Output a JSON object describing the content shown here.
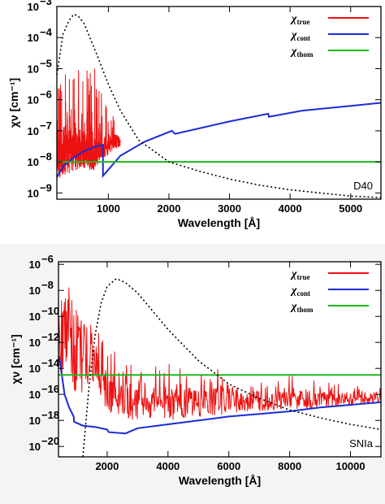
{
  "chart_data": [
    {
      "type": "line",
      "panel_label": "D40",
      "xlabel": "Wavelength [Å]",
      "ylabel": "χν [cm⁻¹]",
      "xlim": [
        150,
        5500
      ],
      "ylim_log10": [
        -9.2,
        -3
      ],
      "xticks": [
        1000,
        2000,
        3000,
        4000,
        5000
      ],
      "yticks_exp": [
        -9,
        -8,
        -7,
        -6,
        -5,
        -4,
        -3
      ],
      "ytick_base": "10",
      "y_scale": "log",
      "legend_position": "top-right",
      "legend": [
        {
          "symbol": "χ",
          "sub": "true",
          "color": "#ee1111"
        },
        {
          "symbol": "χ",
          "sub": "cont",
          "color": "#1a2bd6"
        },
        {
          "symbol": "χ",
          "sub": "thom",
          "color": "#1bb81b"
        }
      ],
      "series": [
        {
          "name": "χtrue",
          "color": "#ee1111",
          "style": "noisy-band",
          "x": [
            150,
            300,
            450,
            600,
            750,
            900,
            1000,
            1100,
            1200
          ],
          "y_log10_low": [
            -8.6,
            -8.4,
            -8.3,
            -8.2,
            -8.3,
            -7.9,
            -7.8,
            -7.6,
            -7.5
          ],
          "y_log10_high": [
            -7.0,
            -6.8,
            -6.9,
            -7.0,
            -7.2,
            -7.4,
            -7.2,
            -7.1,
            -7.2
          ],
          "y_log10_spike_max": [
            -5.5,
            -5.0,
            -4.9,
            -4.6,
            -4.6,
            -5.7,
            -6.2,
            -6.5,
            -6.9
          ]
        },
        {
          "name": "χcont",
          "color": "#1a2bd6",
          "style": "solid",
          "x": [
            150,
            250,
            400,
            600,
            800,
            910,
            911,
            1200,
            1600,
            2050,
            2100,
            3000,
            3640,
            3650,
            4200,
            5000,
            5500
          ],
          "y": [
            -8.5,
            -8.15,
            -7.9,
            -7.65,
            -7.5,
            -7.45,
            -8.45,
            -7.8,
            -7.35,
            -7.0,
            -7.1,
            -6.7,
            -6.45,
            -6.55,
            -6.35,
            -6.2,
            -6.1
          ]
        },
        {
          "name": "χthom",
          "color": "#1bb81b",
          "style": "solid",
          "x": [
            150,
            5500
          ],
          "y": [
            -8.0,
            -8.0
          ]
        },
        {
          "name": "dotted",
          "color": "#000000",
          "style": "dotted",
          "x": [
            150,
            250,
            350,
            430,
            500,
            600,
            800,
            1000,
            1200,
            1500,
            2000,
            2500,
            3000,
            3500,
            4000,
            4500,
            5000,
            5500
          ],
          "y": [
            -5.2,
            -3.9,
            -3.45,
            -3.25,
            -3.3,
            -3.55,
            -4.5,
            -5.5,
            -6.35,
            -7.3,
            -8.0,
            -8.3,
            -8.55,
            -8.75,
            -8.9,
            -9.0,
            -9.1,
            -9.15
          ]
        }
      ]
    },
    {
      "type": "line",
      "panel_label": "SNIa",
      "xlabel": "Wavelength [Å]",
      "ylabel": "χν [cm⁻¹]",
      "xlim": [
        400,
        11000
      ],
      "ylim_log10": [
        -20.8,
        -5.8
      ],
      "xticks": [
        2000,
        4000,
        6000,
        8000,
        10000
      ],
      "yticks_exp": [
        -20,
        -18,
        -16,
        -14,
        -12,
        -10,
        -8,
        -6
      ],
      "ytick_base": "10",
      "y_scale": "log",
      "legend_position": "top-right",
      "legend": [
        {
          "symbol": "χ",
          "sub": "true",
          "color": "#ee1111"
        },
        {
          "symbol": "χ",
          "sub": "cont",
          "color": "#1a2bd6"
        },
        {
          "symbol": "χ",
          "sub": "thom",
          "color": "#1bb81b"
        }
      ],
      "series": [
        {
          "name": "χtrue",
          "color": "#ee1111",
          "style": "noisy-band",
          "x": [
            400,
            700,
            1000,
            1300,
            1600,
            2000,
            2500,
            3000,
            4000,
            5000,
            6000,
            7000,
            8000,
            9000,
            10000,
            11000
          ],
          "y_log10_low": [
            -14.5,
            -14.5,
            -16.5,
            -15.5,
            -15.0,
            -17.3,
            -18.0,
            -18.0,
            -18.0,
            -17.8,
            -17.5,
            -17.3,
            -17.2,
            -17.0,
            -16.9,
            -16.7
          ],
          "y_log10_high": [
            -9.0,
            -8.5,
            -9.5,
            -11.0,
            -12.0,
            -14.0,
            -14.5,
            -15.0,
            -15.3,
            -15.4,
            -15.5,
            -15.6,
            -15.7,
            -15.8,
            -15.9,
            -15.9
          ],
          "y_log10_spike_max": [
            -7.3,
            -7.0,
            -7.8,
            -10.2,
            -9.8,
            -12.5,
            -12.5,
            -13.2,
            -13.0,
            -13.5,
            -14.0,
            -14.5,
            -14.5,
            -15.0,
            -15.2,
            -15.5
          ]
        },
        {
          "name": "χcont",
          "color": "#1a2bd6",
          "style": "solid",
          "x": [
            400,
            450,
            600,
            750,
            900,
            912,
            1200,
            1600,
            2000,
            2050,
            2600,
            3000,
            4000,
            5000,
            6000,
            7000,
            8000,
            9000,
            10000,
            11000
          ],
          "y": [
            -13.0,
            -13.5,
            -16.0,
            -17.0,
            -17.7,
            -18.1,
            -18.4,
            -18.5,
            -18.7,
            -18.9,
            -19.0,
            -18.6,
            -18.3,
            -18.0,
            -17.7,
            -17.5,
            -17.3,
            -17.0,
            -16.8,
            -16.6
          ]
        },
        {
          "name": "χthom",
          "color": "#1bb81b",
          "style": "solid",
          "x": [
            400,
            11000
          ],
          "y": [
            -14.5,
            -14.5
          ]
        },
        {
          "name": "dotted",
          "color": "#000000",
          "style": "dotted",
          "x": [
            1200,
            1400,
            1600,
            1800,
            2000,
            2300,
            2600,
            3000,
            3500,
            4000,
            5000,
            6000,
            7000,
            8000,
            9000,
            10000,
            11000
          ],
          "y": [
            -20.8,
            -15.5,
            -11.5,
            -9.0,
            -7.7,
            -7.1,
            -7.4,
            -8.2,
            -9.6,
            -11.0,
            -13.4,
            -15.2,
            -16.3,
            -17.2,
            -17.8,
            -18.3,
            -18.7
          ]
        }
      ]
    }
  ]
}
